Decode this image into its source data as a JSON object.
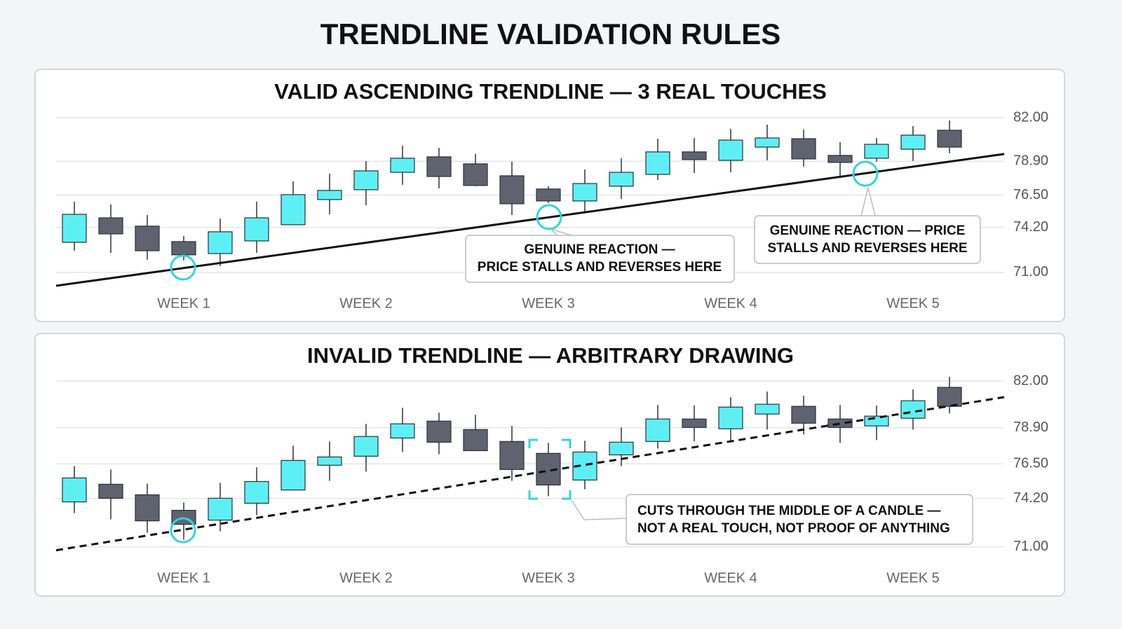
{
  "title": "TRENDLINE VALIDATION RULES",
  "chart_data": [
    {
      "type": "candlestick",
      "title": "VALID ASCENDING TRENDLINE — 3 REAL TOUCHES",
      "categories": [
        null,
        null,
        null,
        "WEEK 1",
        null,
        null,
        null,
        null,
        "WEEK 2",
        null,
        null,
        null,
        null,
        "WEEK 3",
        null,
        null,
        null,
        null,
        "WEEK 4",
        null,
        null,
        null,
        null,
        "WEEK 5",
        null
      ],
      "open": [
        73.14,
        74.88,
        74.29,
        73.19,
        72.34,
        73.24,
        74.39,
        76.18,
        76.88,
        78.12,
        79.22,
        78.72,
        77.87,
        76.93,
        76.08,
        77.13,
        77.97,
        79.57,
        78.97,
        79.91,
        80.51,
        79.32,
        79.12,
        79.76,
        81.11
      ],
      "high": [
        76.03,
        75.83,
        75.08,
        73.59,
        74.83,
        76.03,
        77.47,
        78.02,
        78.92,
        80.01,
        79.86,
        79.42,
        78.87,
        77.13,
        78.32,
        79.12,
        80.51,
        80.56,
        81.21,
        81.51,
        81.16,
        80.26,
        80.56,
        81.41,
        81.81
      ],
      "low": [
        72.54,
        72.39,
        71.9,
        71.85,
        71.45,
        72.39,
        74.39,
        75.13,
        75.78,
        77.23,
        76.98,
        77.13,
        75.08,
        75.93,
        75.33,
        76.23,
        77.57,
        78.07,
        78.12,
        78.97,
        78.52,
        77.82,
        78.87,
        78.92,
        79.47
      ],
      "close": [
        75.13,
        73.74,
        72.54,
        72.25,
        73.89,
        74.88,
        76.53,
        76.83,
        78.22,
        79.12,
        77.82,
        77.18,
        75.88,
        76.08,
        77.32,
        78.12,
        79.57,
        79.02,
        80.41,
        80.56,
        79.07,
        78.82,
        80.11,
        80.76,
        79.91
      ],
      "up_color": "#5cf0f5",
      "down_color": "#5f6370",
      "ylim": [
        69.7,
        82.9
      ],
      "yticks": [
        {
          "value": 82,
          "label": "82.00"
        },
        {
          "value": 78.9,
          "label": "78.90"
        },
        {
          "value": 76.5,
          "label": "76.50"
        },
        {
          "value": 74.2,
          "label": "74.20"
        },
        {
          "value": 71,
          "label": "71.00"
        }
      ],
      "grid": true,
      "trendline": {
        "values": [
          70.05,
          79.42
        ],
        "style": "solid",
        "color": "#111111"
      },
      "annotations": [
        [
          "GENUINE REACTION —",
          "PRICE STALLS AND REVERSES HERE"
        ],
        [
          "GENUINE REACTION — PRICE",
          "STALLS AND REVERSES HERE"
        ]
      ]
    },
    {
      "type": "candlestick",
      "title": "INVALID TRENDLINE — ARBITRARY DRAWING",
      "categories": [
        null,
        null,
        null,
        "WEEK 1",
        null,
        null,
        null,
        null,
        "WEEK 2",
        null,
        null,
        null,
        null,
        "WEEK 3",
        null,
        null,
        null,
        null,
        "WEEK 4",
        null,
        null,
        null,
        null,
        "WEEK 5",
        null
      ],
      "open": [
        73.98,
        75.15,
        74.45,
        73.42,
        72.77,
        73.89,
        74.77,
        76.41,
        77.01,
        78.22,
        79.34,
        78.78,
        77.99,
        77.2,
        75.43,
        77.1,
        77.99,
        79.48,
        78.83,
        79.81,
        80.32,
        79.48,
        79.02,
        79.53,
        81.58
      ],
      "high": [
        76.36,
        76.13,
        75.19,
        73.94,
        75.24,
        76.27,
        77.71,
        77.99,
        79.16,
        80.23,
        79.9,
        79.76,
        79.02,
        77.9,
        78.04,
        78.92,
        80.41,
        80.37,
        80.93,
        81.3,
        81.02,
        80.41,
        80.37,
        81.44,
        82.28
      ],
      "low": [
        73.24,
        72.82,
        71.93,
        71.47,
        72.03,
        73.1,
        74.77,
        75.38,
        75.99,
        77.29,
        77.15,
        77.38,
        75.38,
        74.36,
        74.82,
        76.36,
        77.52,
        77.99,
        77.94,
        78.78,
        78.46,
        77.9,
        78.08,
        78.78,
        79.85
      ],
      "close": [
        75.57,
        74.22,
        72.72,
        72.49,
        74.22,
        75.33,
        76.73,
        76.96,
        78.32,
        79.16,
        77.94,
        77.38,
        76.13,
        75.1,
        77.29,
        77.94,
        79.48,
        78.92,
        80.27,
        80.46,
        79.2,
        78.92,
        79.67,
        80.69,
        80.32
      ],
      "up_color": "#5cf0f5",
      "down_color": "#5f6370",
      "ylim": [
        70.1,
        82.65
      ],
      "yticks": [
        {
          "value": 82,
          "label": "82.00"
        },
        {
          "value": 78.9,
          "label": "78.90"
        },
        {
          "value": 76.5,
          "label": "76.50"
        },
        {
          "value": 74.2,
          "label": "74.20"
        },
        {
          "value": 71,
          "label": "71.00"
        }
      ],
      "grid": true,
      "trendline": {
        "values": [
          70.77,
          80.93
        ],
        "style": "dashed",
        "color": "#111111"
      },
      "annotations": [
        [
          "CUTS THROUGH THE MIDDLE OF A CANDLE —",
          "NOT A REAL TOUCH, NOT PROOF OF ANYTHING"
        ]
      ]
    }
  ]
}
